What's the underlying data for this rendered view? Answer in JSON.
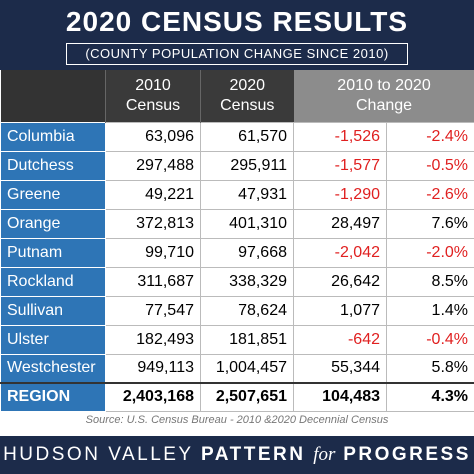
{
  "header": {
    "title": "2020 CENSUS RESULTS",
    "subtitle": "(COUNTY POPULATION CHANGE SINCE 2010)"
  },
  "table": {
    "columns": [
      "2010\nCensus",
      "2020\nCensus",
      "2010 to 2020\nChange"
    ],
    "rows": [
      [
        "Columbia",
        "63,096",
        "61,570",
        "-1,526",
        "-2.4%"
      ],
      [
        "Dutchess",
        "297,488",
        "295,911",
        "-1,577",
        "-0.5%"
      ],
      [
        "Greene",
        "49,221",
        "47,931",
        "-1,290",
        "-2.6%"
      ],
      [
        "Orange",
        "372,813",
        "401,310",
        "28,497",
        "7.6%"
      ],
      [
        "Putnam",
        "99,710",
        "97,668",
        "-2,042",
        "-2.0%"
      ],
      [
        "Rockland",
        "311,687",
        "338,329",
        "26,642",
        "8.5%"
      ],
      [
        "Sullivan",
        "77,547",
        "78,624",
        "1,077",
        "1.4%"
      ],
      [
        "Ulster",
        "182,493",
        "181,851",
        "-642",
        "-0.4%"
      ],
      [
        "Westchester",
        "949,113",
        "1,004,457",
        "55,344",
        "5.8%"
      ]
    ],
    "total": [
      "REGION",
      "2,403,168",
      "2,507,651",
      "104,483",
      "4.3%"
    ]
  },
  "source": "Source: U.S. Census Bureau - 2010 &2020 Decennial Census",
  "footer": {
    "part1": "HUDSON VALLEY",
    "part2": "PATTERN",
    "part3": "for",
    "part4": "PROGRESS"
  }
}
